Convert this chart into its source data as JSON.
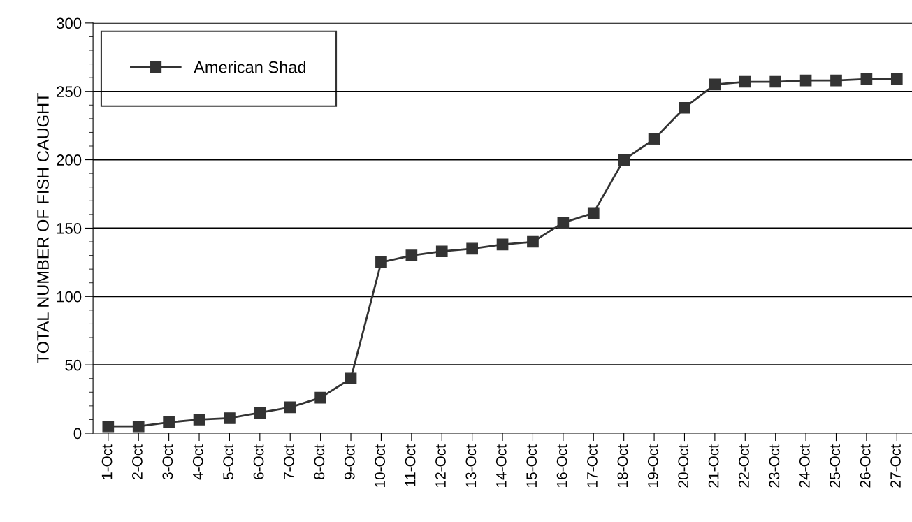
{
  "chart_data": {
    "type": "line",
    "ylabel": "TOTAL NUMBER OF FISH CAUGHT",
    "categories": [
      "1-Oct",
      "2-Oct",
      "3-Oct",
      "4-Oct",
      "5-Oct",
      "6-Oct",
      "7-Oct",
      "8-Oct",
      "9-Oct",
      "10-Oct",
      "11-Oct",
      "12-Oct",
      "13-Oct",
      "14-Oct",
      "15-Oct",
      "16-Oct",
      "17-Oct",
      "18-Oct",
      "19-Oct",
      "20-Oct",
      "21-Oct",
      "22-Oct",
      "23-Oct",
      "24-Oct",
      "25-Oct",
      "26-Oct",
      "27-Oct"
    ],
    "series": [
      {
        "name": "American Shad",
        "color": "#333333",
        "values": [
          5,
          5,
          8,
          10,
          11,
          15,
          19,
          26,
          40,
          125,
          130,
          133,
          135,
          138,
          140,
          154,
          161,
          200,
          215,
          238,
          255,
          257,
          257,
          258,
          258,
          259,
          259
        ]
      }
    ],
    "ylim": [
      0,
      300
    ],
    "yticks": [
      0,
      50,
      100,
      150,
      200,
      250,
      300
    ],
    "grid": "y",
    "legend": "top left",
    "marker": "square",
    "line_style": "solid"
  }
}
